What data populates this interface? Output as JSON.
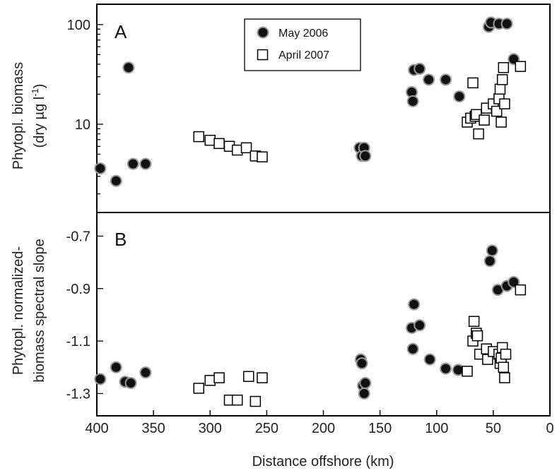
{
  "chart_data": [
    {
      "panel": "A",
      "type": "scatter",
      "ylabel_line1": "Phytopl. biomass",
      "ylabel_line2": "(dry µg  l",
      "ylabel_sup": "-1",
      "ylabel_close": ")",
      "yscale": "log",
      "ylim": [
        1.3,
        160
      ],
      "xlim": [
        400,
        0
      ],
      "y_ticks": [
        {
          "value": 10,
          "label": "10"
        },
        {
          "value": 100,
          "label": "100"
        }
      ],
      "legend": {
        "placement": "top-center",
        "entries": [
          "May 2006",
          "April 2007"
        ]
      },
      "series": [
        {
          "name": "May 2006",
          "marker": "filled-circle",
          "points": [
            [
              397,
              3.6
            ],
            [
              383,
              2.7
            ],
            [
              372,
              37
            ],
            [
              368,
              4.0
            ],
            [
              357,
              4.0
            ],
            [
              168,
              5.8
            ],
            [
              166,
              4.8
            ],
            [
              164,
              5.8
            ],
            [
              163,
              4.8
            ],
            [
              122,
              21
            ],
            [
              121,
              17
            ],
            [
              120,
              35
            ],
            [
              115,
              36
            ],
            [
              107,
              28
            ],
            [
              92,
              28
            ],
            [
              80,
              19
            ],
            [
              54,
              95
            ],
            [
              52,
              105
            ],
            [
              45,
              102
            ],
            [
              38,
              102
            ],
            [
              32,
              45
            ]
          ]
        },
        {
          "name": "April 2007",
          "marker": "open-square",
          "points": [
            [
              310,
              7.5
            ],
            [
              300,
              6.9
            ],
            [
              292,
              6.4
            ],
            [
              283,
              6.0
            ],
            [
              276,
              5.5
            ],
            [
              268,
              5.8
            ],
            [
              260,
              4.8
            ],
            [
              254,
              4.7
            ],
            [
              73,
              10.5
            ],
            [
              70,
              11.5
            ],
            [
              68,
              26
            ],
            [
              66,
              12
            ],
            [
              65,
              12.5
            ],
            [
              63,
              8.0
            ],
            [
              58,
              11
            ],
            [
              56,
              14.5
            ],
            [
              50,
              16
            ],
            [
              47,
              13.5
            ],
            [
              45,
              18
            ],
            [
              44,
              22.5
            ],
            [
              43,
              10.5
            ],
            [
              42,
              28
            ],
            [
              41,
              37
            ],
            [
              40,
              16
            ],
            [
              26,
              38
            ]
          ]
        }
      ]
    },
    {
      "panel": "B",
      "type": "scatter",
      "ylabel_line1": "Phytopl. normalized-",
      "ylabel_line2": "biomass spectral slope",
      "xlabel": "Distance offshore (km)",
      "xlim": [
        400,
        0
      ],
      "ylim": [
        -1.385,
        -0.61
      ],
      "x_ticks": [
        400,
        350,
        300,
        250,
        200,
        150,
        100,
        50,
        0
      ],
      "y_ticks": [
        {
          "value": -0.7,
          "label": "-0.7"
        },
        {
          "value": -0.9,
          "label": "-0.9"
        },
        {
          "value": -1.1,
          "label": "-1.1"
        },
        {
          "value": -1.3,
          "label": "-1.3"
        }
      ],
      "series": [
        {
          "name": "May 2006",
          "marker": "filled-circle",
          "points": [
            [
              397,
              -1.245
            ],
            [
              383,
              -1.2
            ],
            [
              375,
              -1.255
            ],
            [
              370,
              -1.26
            ],
            [
              357,
              -1.22
            ],
            [
              167,
              -1.17
            ],
            [
              166,
              -1.185
            ],
            [
              165,
              -1.27
            ],
            [
              164,
              -1.3
            ],
            [
              163,
              -1.26
            ],
            [
              122,
              -1.05
            ],
            [
              121,
              -1.13
            ],
            [
              120,
              -0.96
            ],
            [
              115,
              -1.04
            ],
            [
              106,
              -1.17
            ],
            [
              92,
              -1.205
            ],
            [
              81,
              -1.21
            ],
            [
              53,
              -0.795
            ],
            [
              51,
              -0.755
            ],
            [
              46,
              -0.905
            ],
            [
              38,
              -0.89
            ],
            [
              32,
              -0.875
            ]
          ]
        },
        {
          "name": "April 2007",
          "marker": "open-square",
          "points": [
            [
              310,
              -1.28
            ],
            [
              300,
              -1.25
            ],
            [
              292,
              -1.24
            ],
            [
              283,
              -1.325
            ],
            [
              276,
              -1.325
            ],
            [
              266,
              -1.235
            ],
            [
              260,
              -1.33
            ],
            [
              254,
              -1.24
            ],
            [
              73,
              -1.215
            ],
            [
              68,
              -1.1
            ],
            [
              67,
              -1.025
            ],
            [
              65,
              -1.07
            ],
            [
              64,
              -1.08
            ],
            [
              62,
              -1.15
            ],
            [
              56,
              -1.13
            ],
            [
              55,
              -1.17
            ],
            [
              50,
              -1.14
            ],
            [
              45,
              -1.15
            ],
            [
              44,
              -1.185
            ],
            [
              43,
              -1.165
            ],
            [
              42,
              -1.125
            ],
            [
              41,
              -1.2
            ],
            [
              40,
              -1.24
            ],
            [
              39,
              -1.15
            ],
            [
              26,
              -0.905
            ]
          ]
        }
      ]
    }
  ]
}
